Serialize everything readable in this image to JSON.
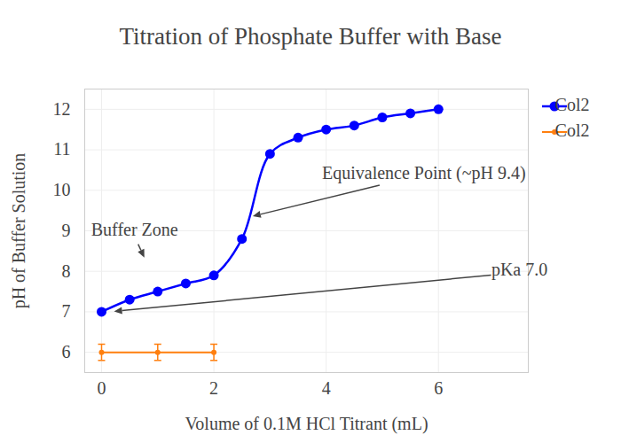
{
  "chart_data": {
    "type": "line",
    "title": "Titration of Phosphate Buffer with Base",
    "x_label": "Volume of 0.1M HCl Titrant (mL)",
    "y_label": "pH of Buffer Solution",
    "xlim": [
      -0.3,
      7.6
    ],
    "ylim": [
      5.5,
      12.5
    ],
    "xticks": [
      0,
      2,
      4,
      6
    ],
    "yticks": [
      6,
      7,
      8,
      9,
      10,
      11,
      12
    ],
    "grid": true,
    "legend": "top-right",
    "series": [
      {
        "name": "Col2",
        "color": "#0000ff",
        "marker": "circle",
        "line_style": "spline",
        "x": [
          0,
          0.5,
          1,
          1.5,
          2,
          2.5,
          3,
          3.5,
          4,
          4.5,
          5,
          5.5,
          6
        ],
        "values": [
          7.0,
          7.3,
          7.5,
          7.7,
          7.9,
          8.8,
          10.9,
          11.3,
          11.5,
          11.6,
          11.8,
          11.9,
          12.0
        ]
      },
      {
        "name": "Col2",
        "color": "#ff7f0e",
        "marker": "circle",
        "line_style": "solid",
        "x": [
          0,
          1,
          2
        ],
        "values": [
          6.0,
          6.0,
          6.0
        ],
        "error": [
          0.2,
          0.2,
          0.2
        ]
      }
    ],
    "annotations": [
      {
        "text": "Equivalence Point (~pH 9.4)",
        "x": 2.7,
        "y": 9.35
      },
      {
        "text": "Buffer Zone",
        "x": 0.77,
        "y": 8.33
      },
      {
        "text": "pKa 7.0",
        "x": 0.23,
        "y": 7.0
      }
    ]
  }
}
